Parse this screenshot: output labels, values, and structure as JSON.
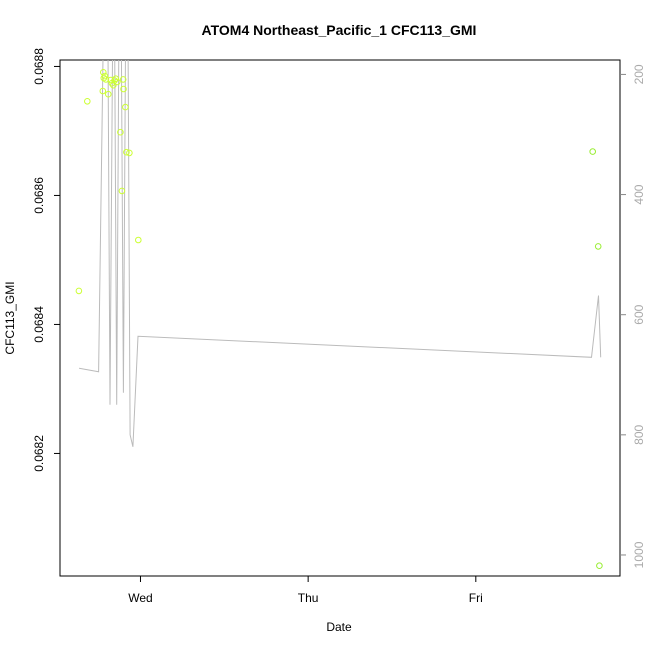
{
  "chart_data": {
    "type": "scatter",
    "title": "ATOM4 Northeast_Pacific_1 CFC113_GMI",
    "xlabel": "Date",
    "ylabel": "CFC113_GMI",
    "x_ticks": [
      {
        "label": "Wed",
        "value": 1.0
      },
      {
        "label": "Thu",
        "value": 2.0
      },
      {
        "label": "Fri",
        "value": 3.0
      }
    ],
    "xlim": [
      0.52,
      3.86
    ],
    "ylim": [
      0.06801,
      0.06881
    ],
    "y_ticks": [
      0.0682,
      0.0684,
      0.0686,
      0.0688
    ],
    "y_tick_labels": [
      "0.0682",
      "0.0684",
      "0.0686",
      "0.0688"
    ],
    "y2_ticks": [
      200,
      400,
      600,
      800,
      1000
    ],
    "y2_tick_labels": [
      "200",
      "400",
      "600",
      "800",
      "1000"
    ],
    "y2_lim": [
      1035,
      176
    ],
    "y2_reversed": true,
    "point_color": "#ccff33",
    "point_color_dark": "#99ee33",
    "line_color": "#bbbbbb",
    "points": [
      {
        "x": 0.633,
        "y": 0.068452
      },
      {
        "x": 0.683,
        "y": 0.068746
      },
      {
        "x": 0.775,
        "y": 0.068762
      },
      {
        "x": 0.778,
        "y": 0.068791
      },
      {
        "x": 0.781,
        "y": 0.068782
      },
      {
        "x": 0.788,
        "y": 0.068785
      },
      {
        "x": 0.794,
        "y": 0.06878
      },
      {
        "x": 0.808,
        "y": 0.068757
      },
      {
        "x": 0.823,
        "y": 0.068779
      },
      {
        "x": 0.829,
        "y": 0.068774
      },
      {
        "x": 0.838,
        "y": 0.068771
      },
      {
        "x": 0.845,
        "y": 0.068778
      },
      {
        "x": 0.853,
        "y": 0.068781
      },
      {
        "x": 0.862,
        "y": 0.068776
      },
      {
        "x": 0.88,
        "y": 0.068698
      },
      {
        "x": 0.889,
        "y": 0.068607
      },
      {
        "x": 0.897,
        "y": 0.06878
      },
      {
        "x": 0.899,
        "y": 0.068765
      },
      {
        "x": 0.91,
        "y": 0.068737
      },
      {
        "x": 0.916,
        "y": 0.068667
      },
      {
        "x": 0.934,
        "y": 0.068666
      },
      {
        "x": 0.987,
        "y": 0.068531
      },
      {
        "x": 3.697,
        "y": 0.068668
      },
      {
        "x": 3.73,
        "y": 0.068521
      },
      {
        "x": 3.737,
        "y": 0.068026
      }
    ],
    "pressure_line": [
      {
        "x": 0.634,
        "p": 689
      },
      {
        "x": 0.75,
        "p": 695
      },
      {
        "x": 0.78,
        "p": 100
      },
      {
        "x": 0.805,
        "p": 100
      },
      {
        "x": 0.818,
        "p": 750
      },
      {
        "x": 0.835,
        "p": 100
      },
      {
        "x": 0.845,
        "p": 100
      },
      {
        "x": 0.858,
        "p": 750
      },
      {
        "x": 0.872,
        "p": 100
      },
      {
        "x": 0.885,
        "p": 100
      },
      {
        "x": 0.898,
        "p": 730
      },
      {
        "x": 0.912,
        "p": 100
      },
      {
        "x": 0.925,
        "p": 100
      },
      {
        "x": 0.938,
        "p": 800
      },
      {
        "x": 0.955,
        "p": 820
      },
      {
        "x": 0.985,
        "p": 636
      },
      {
        "x": 3.69,
        "p": 671
      },
      {
        "x": 3.732,
        "p": 568
      },
      {
        "x": 3.745,
        "p": 671
      }
    ]
  }
}
